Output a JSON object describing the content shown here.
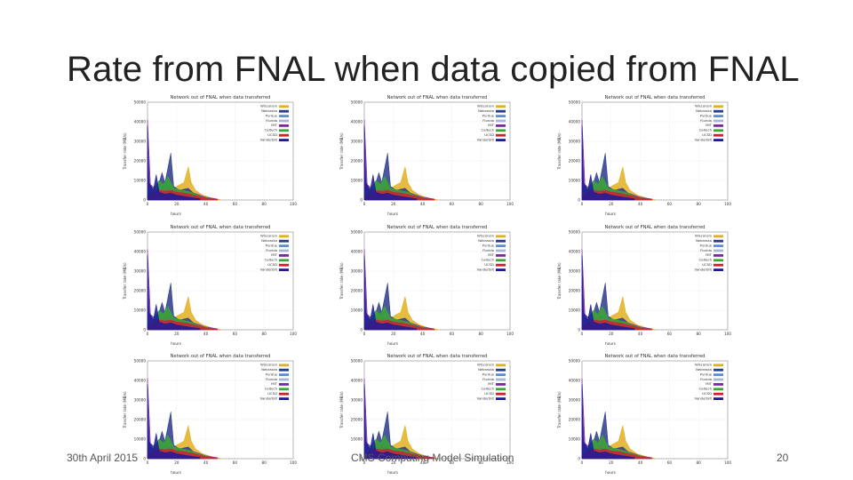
{
  "slide": {
    "title": "Rate from FNAL when data copied from FNAL",
    "footer_date": "30th April 2015",
    "footer_center": "CMS Computing Model Simulation",
    "page_number": "20"
  },
  "panel_count": 9,
  "chart_data": {
    "type": "area",
    "title": "Network out of FNAL when data transferred",
    "xlabel": "hours",
    "ylabel": "Transfer rate (MB/s)",
    "ylim": [
      0,
      5000
    ],
    "yticks": [
      "0",
      "10000",
      "20000",
      "30000",
      "40000",
      "50000"
    ],
    "xticks": [
      "0",
      "20",
      "40",
      "60",
      "80",
      "100"
    ],
    "xlim": [
      0,
      100
    ],
    "legend_placement": "top-right",
    "grid": true,
    "series": [
      {
        "name": "Wisconsin",
        "color": "#e0b020",
        "points": [
          [
            0,
            150
          ],
          [
            5,
            300
          ],
          [
            10,
            600
          ],
          [
            15,
            400
          ],
          [
            20,
            700
          ],
          [
            25,
            900
          ],
          [
            28,
            1700
          ],
          [
            30,
            900
          ],
          [
            33,
            500
          ],
          [
            38,
            250
          ],
          [
            45,
            80
          ],
          [
            50,
            20
          ]
        ]
      },
      {
        "name": "Nebraska",
        "color": "#2a3a8c",
        "points": [
          [
            0,
            300
          ],
          [
            3,
            500
          ],
          [
            6,
            400
          ],
          [
            10,
            1400
          ],
          [
            12,
            900
          ],
          [
            16,
            2400
          ],
          [
            18,
            700
          ],
          [
            22,
            500
          ],
          [
            28,
            600
          ],
          [
            34,
            200
          ],
          [
            40,
            80
          ]
        ]
      },
      {
        "name": "Purdue",
        "color": "#5c8fcf",
        "points": [
          [
            0,
            200
          ],
          [
            5,
            300
          ],
          [
            10,
            400
          ],
          [
            15,
            500
          ],
          [
            20,
            300
          ],
          [
            25,
            400
          ],
          [
            30,
            300
          ],
          [
            35,
            150
          ],
          [
            42,
            60
          ]
        ]
      },
      {
        "name": "Florida",
        "color": "#a8b6d6",
        "points": [
          [
            0,
            100
          ],
          [
            6,
            250
          ],
          [
            12,
            300
          ],
          [
            18,
            250
          ],
          [
            24,
            200
          ],
          [
            30,
            200
          ],
          [
            36,
            100
          ],
          [
            44,
            40
          ]
        ]
      },
      {
        "name": "MIT",
        "color": "#7a2aa0",
        "points": [
          [
            0,
            4100
          ],
          [
            1,
            2500
          ],
          [
            2,
            800
          ],
          [
            5,
            600
          ],
          [
            8,
            500
          ],
          [
            12,
            700
          ],
          [
            16,
            600
          ],
          [
            20,
            500
          ],
          [
            26,
            450
          ],
          [
            32,
            350
          ],
          [
            40,
            150
          ],
          [
            48,
            50
          ]
        ]
      },
      {
        "name": "Caltech",
        "color": "#3aa830",
        "points": [
          [
            0,
            300
          ],
          [
            4,
            600
          ],
          [
            8,
            1000
          ],
          [
            11,
            800
          ],
          [
            14,
            1200
          ],
          [
            18,
            600
          ],
          [
            24,
            500
          ],
          [
            30,
            400
          ],
          [
            36,
            200
          ],
          [
            44,
            60
          ]
        ]
      },
      {
        "name": "UCSD",
        "color": "#d02030",
        "points": [
          [
            0,
            200
          ],
          [
            4,
            400
          ],
          [
            8,
            500
          ],
          [
            12,
            450
          ],
          [
            16,
            500
          ],
          [
            20,
            400
          ],
          [
            26,
            350
          ],
          [
            32,
            250
          ],
          [
            40,
            100
          ],
          [
            48,
            30
          ]
        ]
      },
      {
        "name": "Vanderbilt",
        "color": "#1a1a9a",
        "points": [
          [
            0,
            3800
          ],
          [
            0.5,
            2000
          ],
          [
            1,
            900
          ],
          [
            4,
            500
          ],
          [
            6,
            1300
          ],
          [
            8,
            400
          ],
          [
            12,
            300
          ],
          [
            16,
            350
          ],
          [
            20,
            250
          ],
          [
            28,
            150
          ],
          [
            36,
            60
          ]
        ]
      }
    ]
  }
}
